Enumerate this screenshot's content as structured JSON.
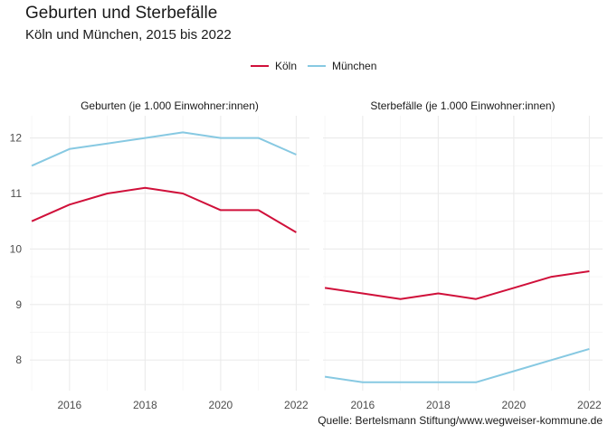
{
  "header": {
    "title": "Geburten und Sterbefälle",
    "subtitle": "Köln und München, 2015 bis 2022"
  },
  "caption": "Quelle: Bertelsmann Stiftung/www.wegweiser-kommune.de",
  "chart_data": {
    "type": "line",
    "title": "Geburten und Sterbefälle",
    "subtitle": "Köln und München, 2015 bis 2022",
    "legend_position": "top-center",
    "grid": true,
    "x": [
      2015,
      2016,
      2017,
      2018,
      2019,
      2020,
      2021,
      2022
    ],
    "x_ticks": [
      2016,
      2018,
      2020,
      2022
    ],
    "xlim": [
      2014.95,
      2022.35
    ],
    "y_ticks": [
      8,
      9,
      10,
      11,
      12
    ],
    "ylim": [
      7.45,
      12.4
    ],
    "colors": {
      "Köln": "#d0103a",
      "München": "#87c9e2"
    },
    "legend": [
      "Köln",
      "München"
    ],
    "panels": [
      {
        "label": "Geburten (je 1.000 Einwohner:innen)",
        "series": [
          {
            "name": "Köln",
            "values": [
              10.5,
              10.8,
              11.0,
              11.1,
              11.0,
              10.7,
              10.7,
              10.3
            ]
          },
          {
            "name": "München",
            "values": [
              11.5,
              11.8,
              11.9,
              12.0,
              12.1,
              12.0,
              12.0,
              11.7
            ]
          }
        ]
      },
      {
        "label": "Sterbefälle (je 1.000 Einwohner:innen)",
        "series": [
          {
            "name": "Köln",
            "values": [
              9.3,
              9.2,
              9.1,
              9.2,
              9.1,
              9.3,
              9.5,
              9.6
            ]
          },
          {
            "name": "München",
            "values": [
              7.7,
              7.6,
              7.6,
              7.6,
              7.6,
              7.8,
              8.0,
              8.2
            ]
          }
        ]
      }
    ]
  }
}
